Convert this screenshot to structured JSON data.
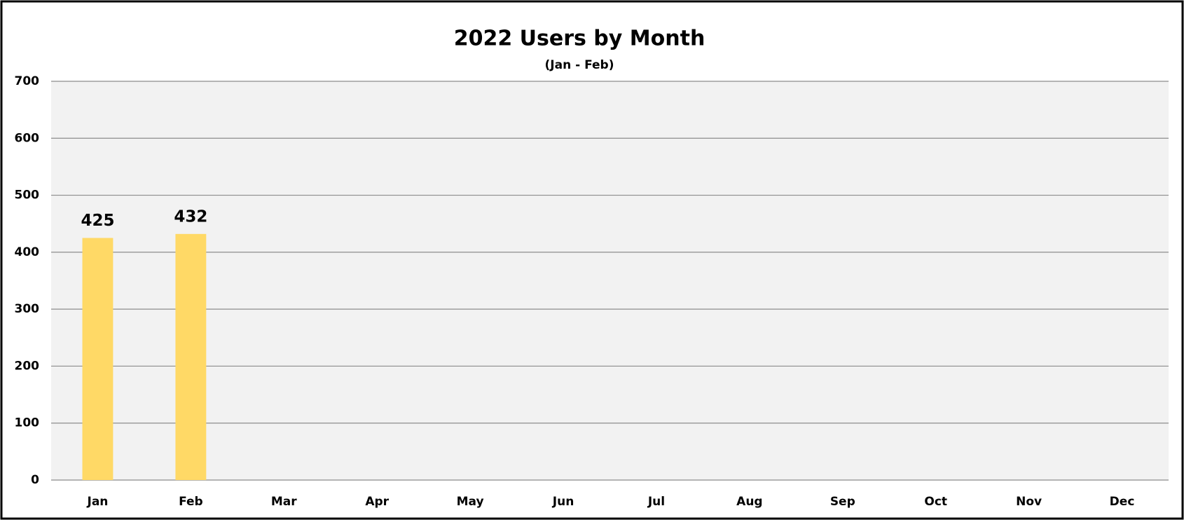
{
  "chart_data": {
    "type": "bar",
    "title": "2022 Users by Month",
    "subtitle": "(Jan - Feb)",
    "categories": [
      "Jan",
      "Feb",
      "Mar",
      "Apr",
      "May",
      "Jun",
      "Jul",
      "Aug",
      "Sep",
      "Oct",
      "Nov",
      "Dec"
    ],
    "values": [
      425,
      432,
      null,
      null,
      null,
      null,
      null,
      null,
      null,
      null,
      null,
      null
    ],
    "color": "#ffd966",
    "ylim": [
      0,
      700
    ],
    "yticks": [
      0,
      100,
      200,
      300,
      400,
      500,
      600,
      700
    ],
    "grid": true
  }
}
